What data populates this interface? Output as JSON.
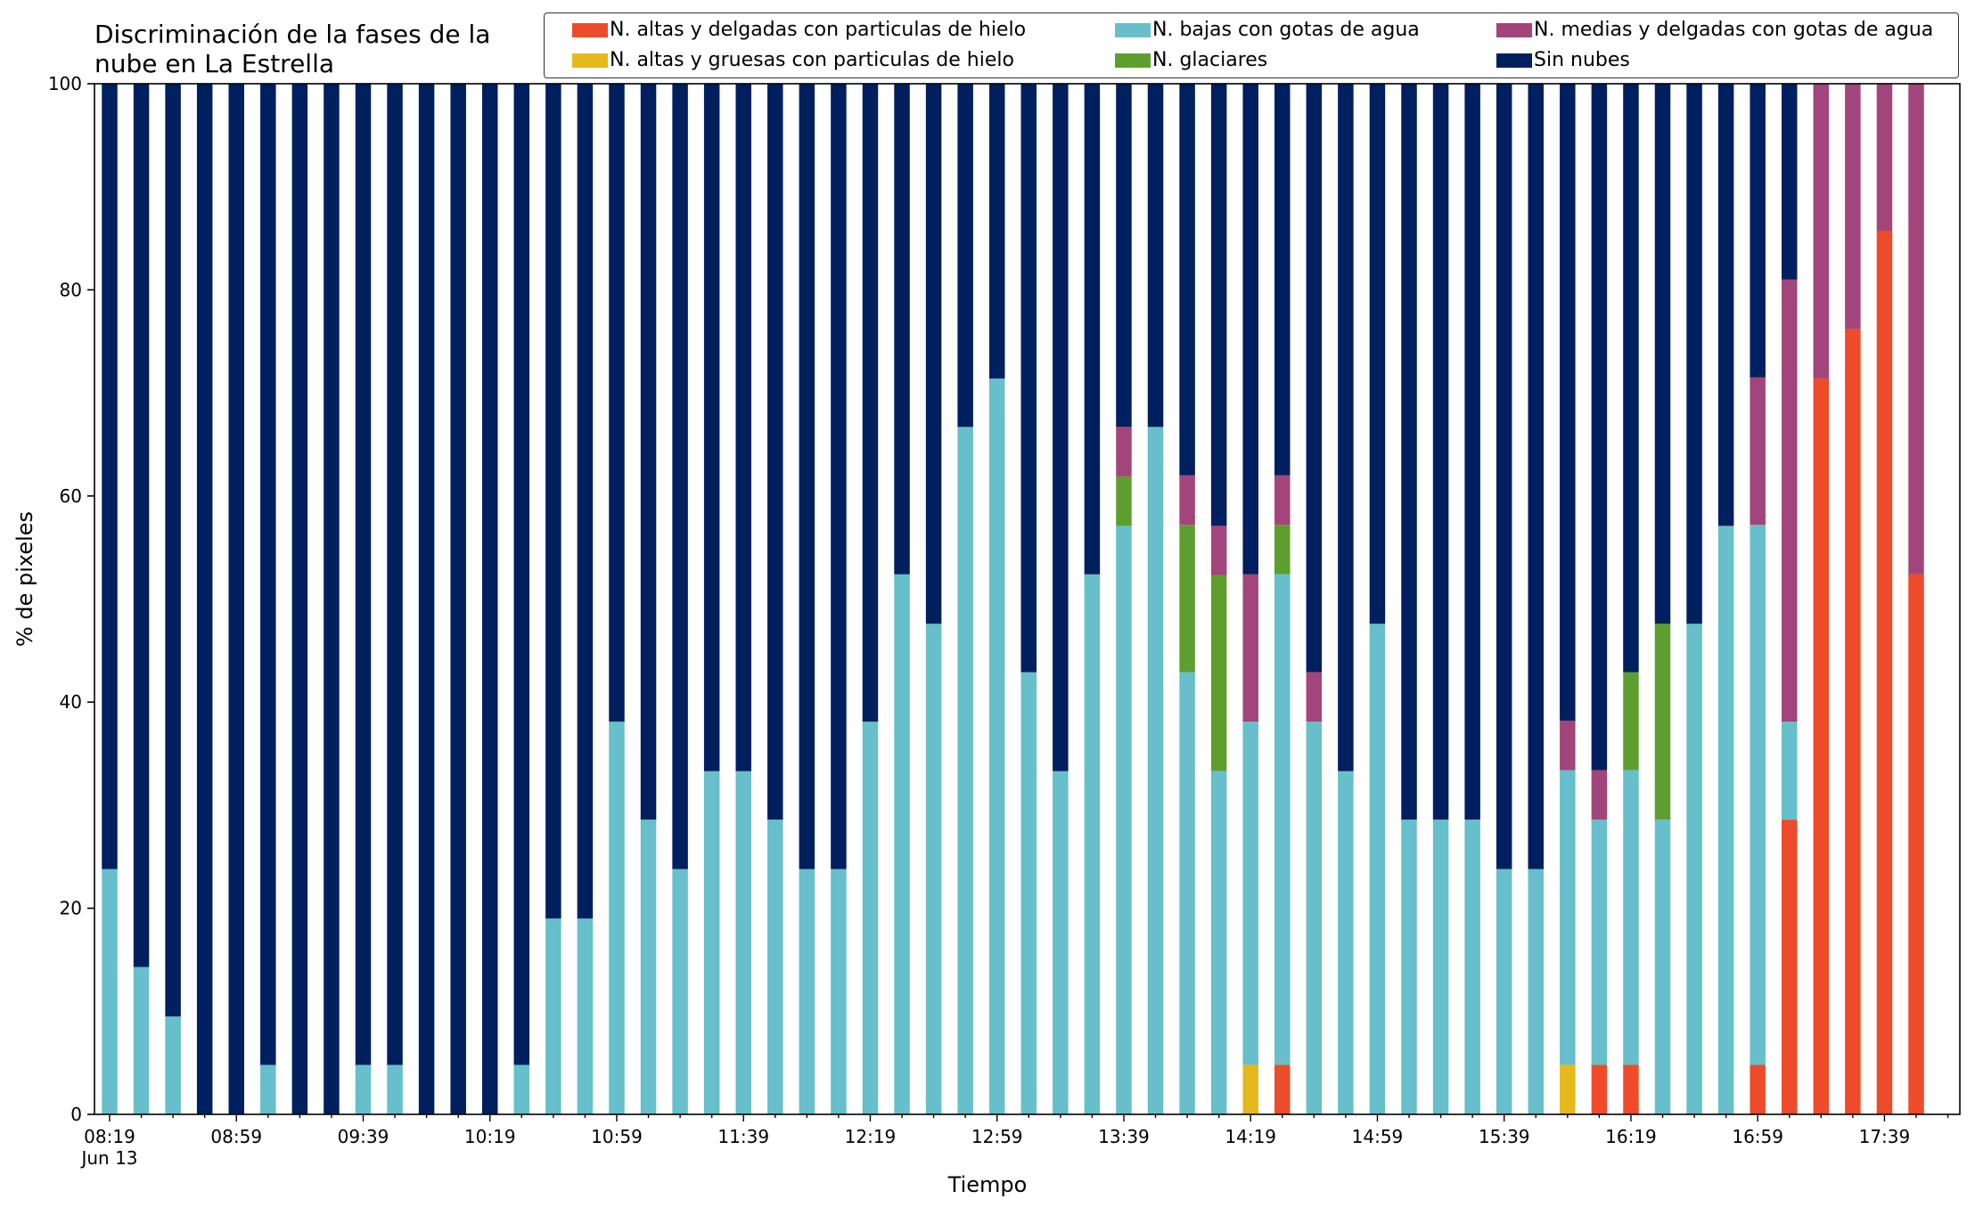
{
  "chart_data": {
    "type": "bar",
    "stacked": true,
    "title": "Discriminación de la fases de la nube en La Estrella",
    "title_lines": [
      "Discriminación de la fases de la",
      "nube en La Estrella"
    ],
    "xlabel": "Tiempo",
    "ylabel": "% de pixeles",
    "ylim": [
      0,
      100
    ],
    "yticks": [
      0,
      20,
      40,
      60,
      80,
      100
    ],
    "grid": false,
    "legend_position": "top-right",
    "x_date_label": "Jun 13",
    "x": [
      "08:19",
      "08:29",
      "08:39",
      "08:49",
      "08:59",
      "09:09",
      "09:19",
      "09:29",
      "09:39",
      "09:49",
      "09:59",
      "10:09",
      "10:19",
      "10:29",
      "10:39",
      "10:49",
      "10:59",
      "11:09",
      "11:19",
      "11:29",
      "11:39",
      "11:49",
      "11:59",
      "12:09",
      "12:19",
      "12:29",
      "12:39",
      "12:49",
      "12:59",
      "13:09",
      "13:19",
      "13:29",
      "13:39",
      "13:49",
      "13:59",
      "14:09",
      "14:19",
      "14:29",
      "14:39",
      "14:49",
      "14:59",
      "15:09",
      "15:19",
      "15:29",
      "15:39",
      "15:49",
      "15:59",
      "16:09",
      "16:19",
      "16:29",
      "16:39",
      "16:49",
      "16:59",
      "17:09",
      "17:19",
      "17:29",
      "17:39",
      "17:49"
    ],
    "xtick_labels": [
      "08:19",
      "08:59",
      "09:39",
      "10:19",
      "10:59",
      "11:39",
      "12:19",
      "12:59",
      "13:39",
      "14:19",
      "14:59",
      "15:39",
      "16:19",
      "16:59",
      "17:39"
    ],
    "series": [
      {
        "name": "N. altas y delgadas con particulas de hielo",
        "color": "#ee4b2b",
        "values": [
          0,
          0,
          0,
          0,
          0,
          0,
          0,
          0,
          0,
          0,
          0,
          0,
          0,
          0,
          0,
          0,
          0,
          0,
          0,
          0,
          0,
          0,
          0,
          0,
          0,
          0,
          0,
          0,
          0,
          0,
          0,
          0,
          0,
          0,
          0,
          0,
          0,
          4.8,
          0,
          0,
          0,
          0,
          0,
          0,
          0,
          0,
          0,
          4.8,
          4.8,
          0,
          0,
          0,
          4.8,
          28.6,
          71.4,
          76.2,
          85.7,
          52.4
        ]
      },
      {
        "name": "N. altas y gruesas con particulas de hielo",
        "color": "#e5b81c",
        "values": [
          0,
          0,
          0,
          0,
          0,
          0,
          0,
          0,
          0,
          0,
          0,
          0,
          0,
          0,
          0,
          0,
          0,
          0,
          0,
          0,
          0,
          0,
          0,
          0,
          0,
          0,
          0,
          0,
          0,
          0,
          0,
          0,
          0,
          0,
          0,
          0,
          4.8,
          0,
          0,
          0,
          0,
          0,
          0,
          0,
          0,
          0,
          4.8,
          0,
          0,
          0,
          0,
          0,
          0,
          0,
          0,
          0,
          0,
          0
        ]
      },
      {
        "name": "N. bajas con gotas de agua",
        "color": "#66bfca",
        "values": [
          23.8,
          14.3,
          9.5,
          0,
          0,
          4.8,
          0,
          0,
          4.8,
          4.8,
          0,
          0,
          0,
          4.8,
          19.0,
          19.0,
          38.1,
          28.6,
          23.8,
          33.3,
          33.3,
          28.6,
          23.8,
          23.8,
          38.1,
          52.4,
          47.6,
          66.7,
          71.4,
          42.9,
          33.3,
          52.4,
          57.1,
          66.7,
          42.9,
          33.3,
          33.3,
          47.6,
          38.1,
          33.3,
          47.6,
          28.6,
          28.6,
          28.6,
          23.8,
          23.8,
          28.6,
          23.8,
          28.6,
          28.6,
          47.6,
          57.1,
          52.4,
          9.5,
          0,
          0,
          0,
          0
        ]
      },
      {
        "name": "N. glaciares",
        "color": "#5e9e2e",
        "values": [
          0,
          0,
          0,
          0,
          0,
          0,
          0,
          0,
          0,
          0,
          0,
          0,
          0,
          0,
          0,
          0,
          0,
          0,
          0,
          0,
          0,
          0,
          0,
          0,
          0,
          0,
          0,
          0,
          0,
          0,
          0,
          0,
          4.8,
          0,
          14.3,
          19.0,
          0,
          4.8,
          0,
          0,
          0,
          0,
          0,
          0,
          0,
          0,
          0,
          0,
          9.5,
          19.0,
          0,
          0,
          0,
          0,
          0,
          0,
          0,
          0
        ]
      },
      {
        "name": "N. medias y delgadas con gotas de agua",
        "color": "#a2457a",
        "values": [
          0,
          0,
          0,
          0,
          0,
          0,
          0,
          0,
          0,
          0,
          0,
          0,
          0,
          0,
          0,
          0,
          0,
          0,
          0,
          0,
          0,
          0,
          0,
          0,
          0,
          0,
          0,
          0,
          0,
          0,
          0,
          0,
          4.8,
          0,
          4.8,
          4.8,
          14.3,
          4.8,
          4.8,
          0,
          0,
          0,
          0,
          0,
          0,
          0,
          4.8,
          4.8,
          0,
          0,
          0,
          0,
          14.3,
          42.9,
          28.6,
          23.8,
          14.3,
          47.6
        ]
      },
      {
        "name": "Sin nubes",
        "color": "#001f5f",
        "values": [
          76.2,
          85.7,
          90.5,
          100,
          100,
          95.2,
          100,
          100,
          95.2,
          95.2,
          100,
          100,
          100,
          95.2,
          81.0,
          81.0,
          61.9,
          71.4,
          76.2,
          66.7,
          66.7,
          71.4,
          76.2,
          76.2,
          61.9,
          47.6,
          52.4,
          33.3,
          28.6,
          57.1,
          66.7,
          47.6,
          33.3,
          33.3,
          38.1,
          42.9,
          47.6,
          38.1,
          57.1,
          66.7,
          52.4,
          71.4,
          71.4,
          71.4,
          76.2,
          76.2,
          61.9,
          66.7,
          57.1,
          52.4,
          52.4,
          42.9,
          28.6,
          19.0,
          0,
          0,
          0,
          0
        ]
      }
    ]
  }
}
